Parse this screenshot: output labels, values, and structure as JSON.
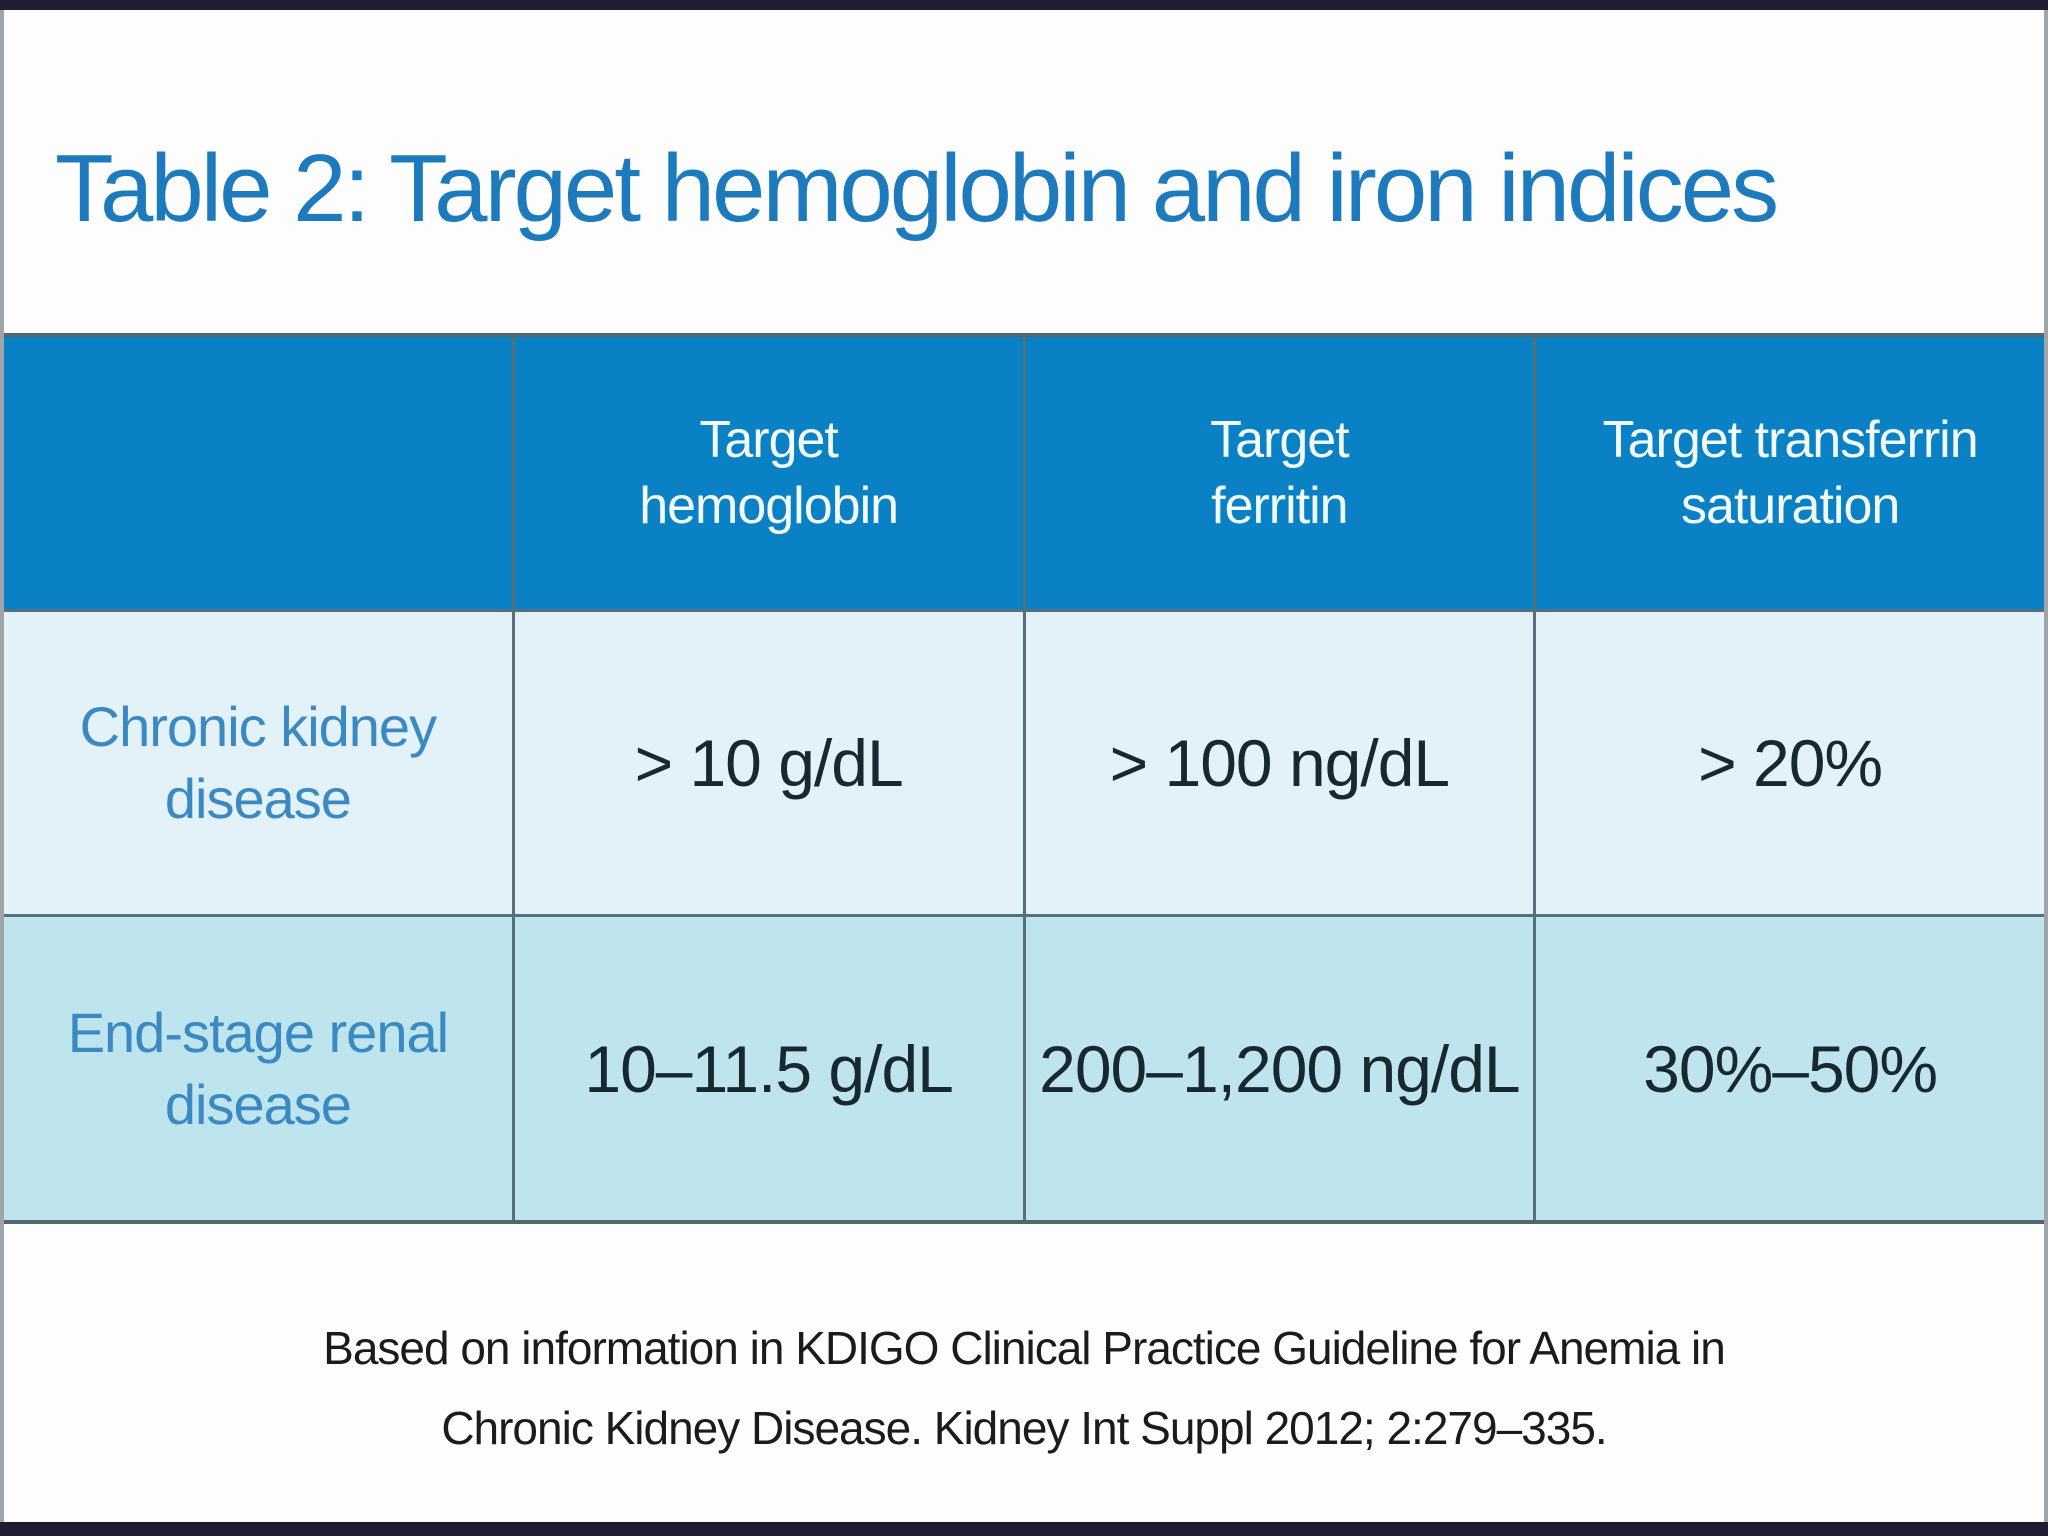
{
  "slide": {
    "title": "Table 2: Target hemoglobin and iron indices"
  },
  "table": {
    "header": [
      {
        "lines": [
          "",
          ""
        ]
      },
      {
        "lines": [
          "Target",
          "hemoglobin"
        ]
      },
      {
        "lines": [
          "Target",
          "ferritin"
        ]
      },
      {
        "lines": [
          "Target transferrin",
          "saturation"
        ]
      }
    ],
    "rows": [
      {
        "label_lines": [
          "Chronic kidney",
          "disease"
        ],
        "target_hemoglobin": "> 10 g/dL",
        "target_ferritin": "> 100 ng/dL",
        "target_transferrin_saturation": "> 20%"
      },
      {
        "label_lines": [
          "End-stage renal",
          "disease"
        ],
        "target_hemoglobin": "10–11.5 g/dL",
        "target_ferritin": "200–1,200 ng/dL",
        "target_transferrin_saturation": "30%–50%"
      }
    ]
  },
  "footer": {
    "line1": "Based on information in KDIGO Clinical Practice Guideline for Anemia in",
    "line2": "Chronic Kidney Disease. Kidney Int Suppl 2012; 2:279–335."
  },
  "colors": {
    "header_bg": "#0981c4",
    "row_odd_bg": "#e3f1f8",
    "row_even_bg": "#bee5ed",
    "title_text": "#1d7abc",
    "label_text": "#3a89c3",
    "value_text": "#182830",
    "divider": "#54717b",
    "frame_bar": "#1e1e30"
  }
}
